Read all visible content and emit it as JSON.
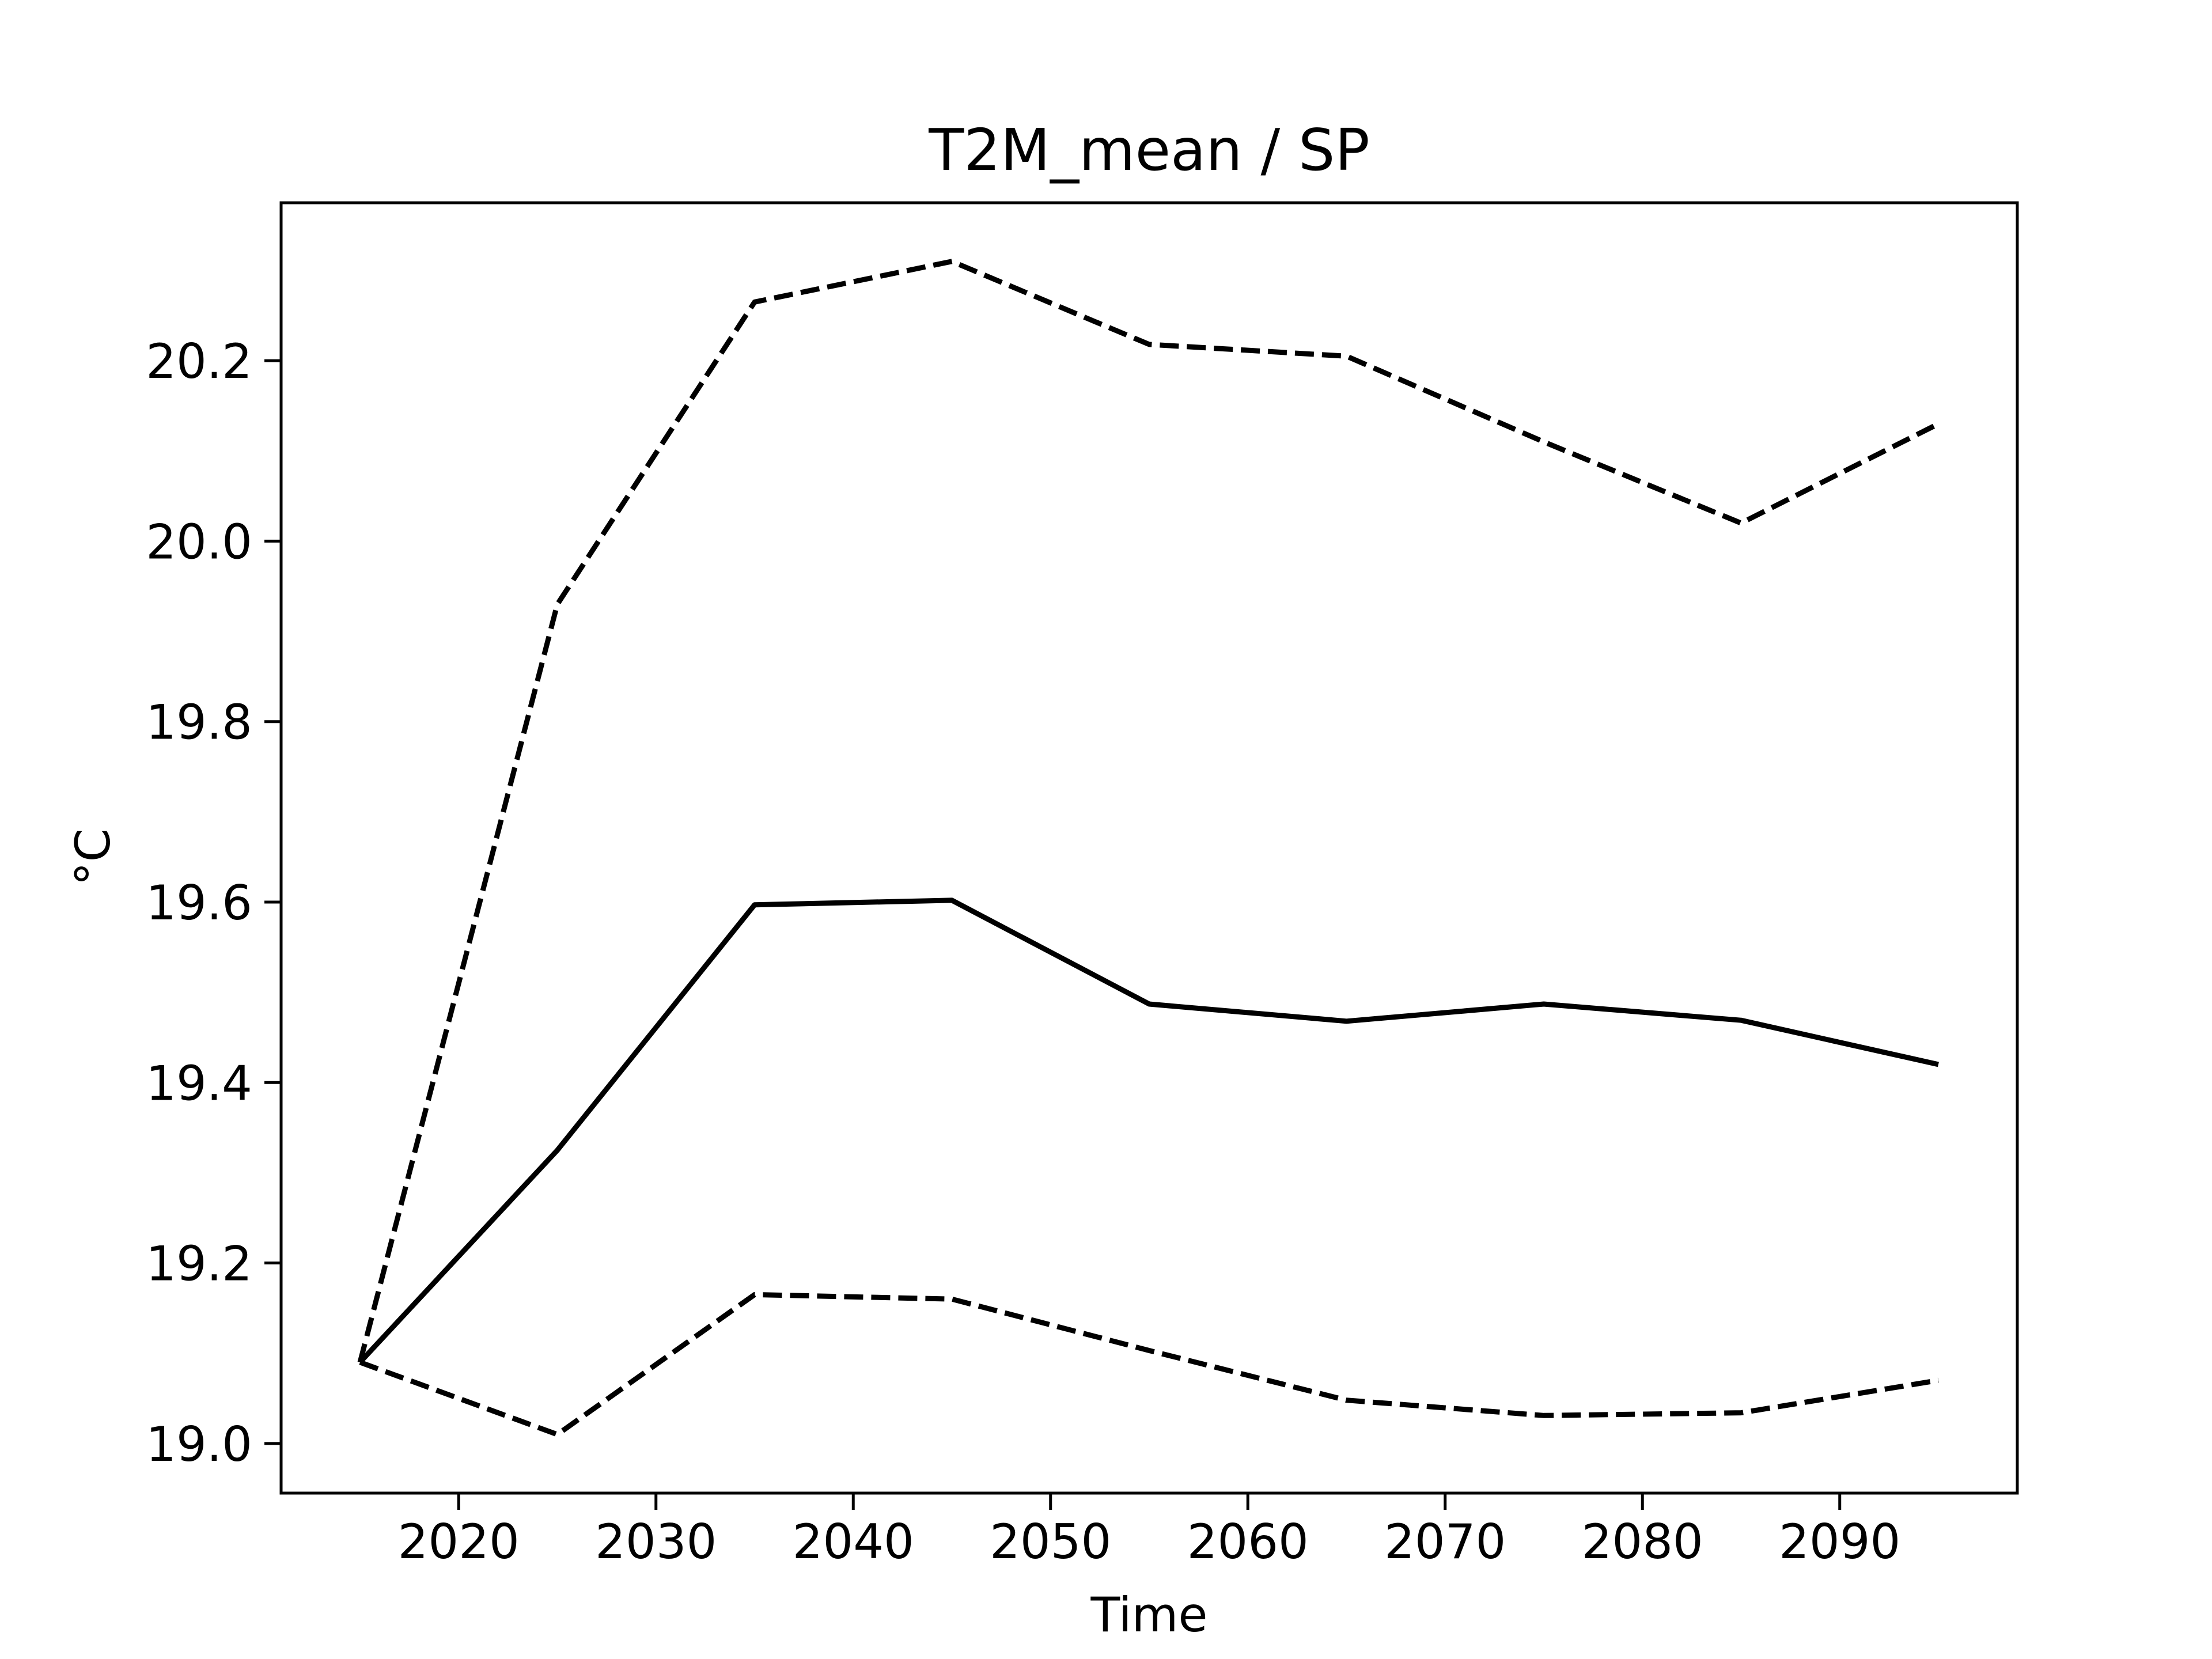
{
  "chart_data": {
    "type": "line",
    "title": "T2M_mean / SP",
    "xlabel": "Time",
    "ylabel": "°C",
    "x": [
      2015,
      2025,
      2035,
      2045,
      2055,
      2065,
      2075,
      2085,
      2095
    ],
    "xlim": [
      2011,
      2099
    ],
    "ylim": [
      18.945,
      20.375
    ],
    "xticks": [
      2020,
      2030,
      2040,
      2050,
      2060,
      2070,
      2080,
      2090
    ],
    "xtick_labels": [
      "2020",
      "2030",
      "2040",
      "2050",
      "2060",
      "2070",
      "2080",
      "2090"
    ],
    "yticks": [
      19.0,
      19.2,
      19.4,
      19.6,
      19.8,
      20.0,
      20.2
    ],
    "ytick_labels": [
      "19.0",
      "19.2",
      "19.4",
      "19.6",
      "19.8",
      "20.0",
      "20.2"
    ],
    "grid": false,
    "legend": "none",
    "series": [
      {
        "style": "dashed",
        "color": "#000000",
        "values": [
          19.09,
          19.93,
          20.265,
          20.31,
          20.218,
          20.205,
          20.11,
          20.02,
          20.13
        ]
      },
      {
        "style": "solid",
        "color": "#000000",
        "values": [
          19.09,
          19.325,
          19.597,
          19.602,
          19.487,
          19.468,
          19.487,
          19.469,
          19.42
        ]
      },
      {
        "style": "dashed",
        "color": "#000000",
        "values": [
          19.09,
          19.01,
          19.165,
          19.16,
          19.103,
          19.048,
          19.031,
          19.034,
          19.07
        ]
      }
    ]
  }
}
